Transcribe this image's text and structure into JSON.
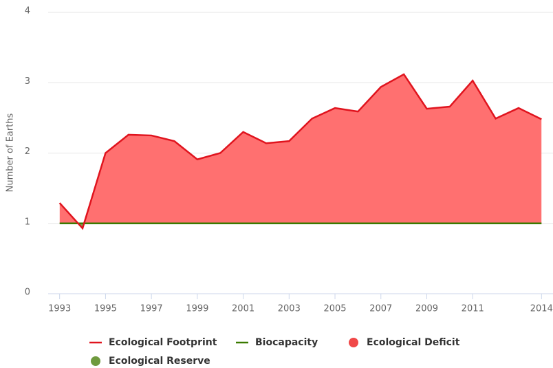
{
  "chart_data": {
    "type": "area",
    "y_axis_label": "Number of Earths",
    "x": [
      1993,
      1994,
      1995,
      1996,
      1997,
      1998,
      1999,
      2000,
      2001,
      2002,
      2003,
      2004,
      2005,
      2006,
      2007,
      2008,
      2009,
      2010,
      2011,
      2012,
      2013,
      2014
    ],
    "series": [
      {
        "name": "Ecological Footprint",
        "color": "#e0141e",
        "values": [
          1.29,
          0.93,
          2.0,
          2.26,
          2.25,
          2.17,
          1.91,
          2.0,
          2.3,
          2.14,
          2.17,
          2.49,
          2.64,
          2.59,
          2.94,
          3.12,
          2.63,
          2.66,
          3.03,
          2.49,
          2.64,
          2.48
        ]
      },
      {
        "name": "Biocapacity",
        "color": "#3a7a00",
        "values": [
          1,
          1,
          1,
          1,
          1,
          1,
          1,
          1,
          1,
          1,
          1,
          1,
          1,
          1,
          1,
          1,
          1,
          1,
          1,
          1,
          1,
          1
        ]
      }
    ],
    "areas": [
      {
        "name": "Ecological Deficit",
        "color": "#f04848"
      },
      {
        "name": "Ecological Reserve",
        "color": "#6f9a3e"
      }
    ],
    "xlim": [
      1992.5,
      2014.5
    ],
    "xticks": [
      1993,
      1995,
      1997,
      1999,
      2001,
      2003,
      2005,
      2007,
      2009,
      2011,
      2014
    ],
    "ylim": [
      0,
      4
    ],
    "yticks": [
      0,
      1,
      2,
      3,
      4
    ],
    "grid": true
  }
}
